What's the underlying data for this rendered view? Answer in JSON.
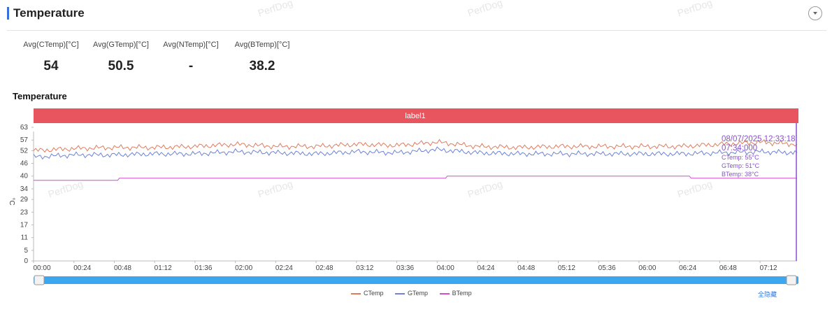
{
  "header": {
    "title": "Temperature"
  },
  "stats": [
    {
      "label": "Avg(CTemp)[°C]",
      "value": "54"
    },
    {
      "label": "Avg(GTemp)[°C]",
      "value": "50.5"
    },
    {
      "label": "Avg(NTemp)[°C]",
      "value": "-"
    },
    {
      "label": "Avg(BTemp)[°C]",
      "value": "38.2"
    }
  ],
  "watermark": "PerfDog",
  "tooltip": {
    "date": "08/07/2025 12:33:18",
    "time": "07:34:000",
    "ctemp": "CTemp: 55°C",
    "gtemp": "GTemp: 51°C",
    "btemp": "BTemp: 38°C"
  },
  "hide_all_label": "全隐藏",
  "chart_data": {
    "type": "line",
    "title": "Temperature",
    "band_label": "label1",
    "ylabel": "°C",
    "ylim": [
      0,
      63
    ],
    "yticks": [
      0,
      5,
      11,
      17,
      23,
      29,
      34,
      40,
      46,
      52,
      57,
      63
    ],
    "xlabel": "",
    "xticks": [
      "00:00",
      "00:24",
      "00:48",
      "01:12",
      "01:36",
      "02:00",
      "02:24",
      "02:48",
      "03:12",
      "03:36",
      "04:00",
      "04:24",
      "04:48",
      "05:12",
      "05:36",
      "06:00",
      "06:24",
      "06:48",
      "07:12"
    ],
    "x_range_seconds": [
      0,
      27240
    ],
    "series": [
      {
        "name": "CTemp",
        "color": "#e07a5f",
        "x": [
          0,
          1440,
          2880,
          4320,
          5760,
          7200,
          8640,
          10080,
          11520,
          12960,
          14400,
          15840,
          17280,
          18720,
          20160,
          21600,
          23040,
          24480,
          25920,
          27240
        ],
        "values": [
          52,
          53,
          53.5,
          53.5,
          54,
          55,
          54,
          54,
          55,
          54.5,
          56,
          54,
          53.5,
          54,
          54,
          54,
          54,
          55,
          56,
          55
        ]
      },
      {
        "name": "GTemp",
        "color": "#6e82d6",
        "x": [
          0,
          1440,
          2880,
          4320,
          5760,
          7200,
          8640,
          10080,
          11520,
          12960,
          14400,
          15840,
          17280,
          18720,
          20160,
          21600,
          23040,
          24480,
          25920,
          27240
        ],
        "values": [
          49,
          50,
          50,
          50.5,
          50.5,
          51.5,
          51,
          50.5,
          51.5,
          51,
          52.5,
          51,
          50.5,
          50.5,
          50.5,
          50.5,
          50.5,
          51,
          51.5,
          51
        ]
      },
      {
        "name": "BTemp",
        "color": "#d04fc8",
        "x": [
          0,
          3000,
          3060,
          14700,
          14760,
          23400,
          23460,
          27240
        ],
        "values": [
          38,
          38,
          39,
          39,
          40,
          40,
          39,
          39
        ]
      }
    ],
    "legend_position": "bottom",
    "grid": false
  }
}
